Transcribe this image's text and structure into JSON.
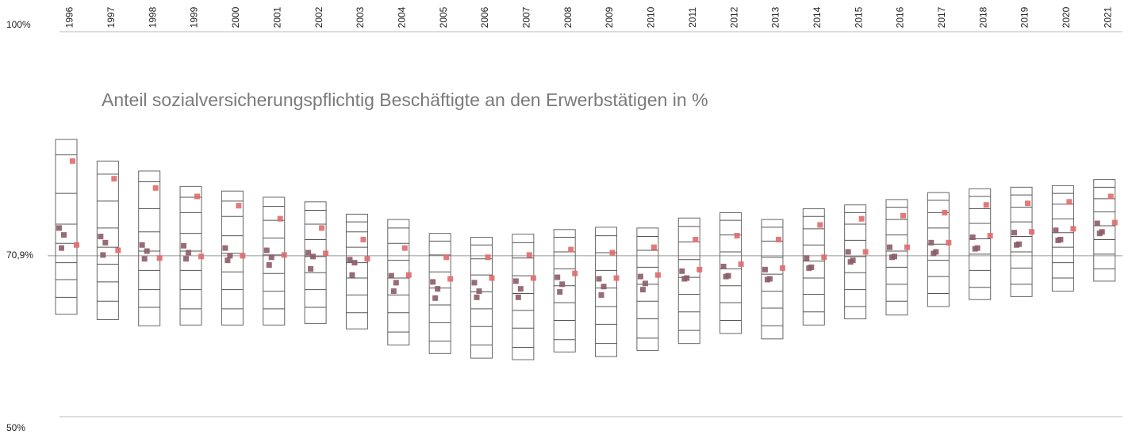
{
  "chart_data": {
    "type": "strip-box",
    "title": "Anteil sozialversicherungspflichtig Beschäftigte an den Erwerbstätigen in %",
    "categories": [
      "1996",
      "1997",
      "1998",
      "1999",
      "2000",
      "2001",
      "2002",
      "2003",
      "2004",
      "2005",
      "2006",
      "2007",
      "2008",
      "2009",
      "2010",
      "2011",
      "2012",
      "2013",
      "2014",
      "2015",
      "2016",
      "2017",
      "2018",
      "2019",
      "2020",
      "2021"
    ],
    "ylim": [
      50,
      100
    ],
    "yticks": [
      {
        "value": 100,
        "label": "100%"
      },
      {
        "value": 70.9,
        "label": "70,9%"
      },
      {
        "value": 50,
        "label": "50%"
      }
    ],
    "ranges": [
      [
        63.3,
        86.0
      ],
      [
        62.6,
        83.2
      ],
      [
        61.8,
        81.9
      ],
      [
        61.9,
        79.9
      ],
      [
        61.9,
        79.3
      ],
      [
        61.9,
        78.5
      ],
      [
        62.1,
        77.9
      ],
      [
        61.4,
        76.3
      ],
      [
        59.3,
        75.6
      ],
      [
        58.2,
        73.8
      ],
      [
        57.6,
        73.3
      ],
      [
        57.4,
        73.7
      ],
      [
        58.4,
        74.3
      ],
      [
        57.8,
        74.6
      ],
      [
        58.6,
        74.5
      ],
      [
        59.5,
        75.8
      ],
      [
        60.8,
        76.5
      ],
      [
        60.1,
        75.6
      ],
      [
        61.9,
        77.0
      ],
      [
        62.7,
        77.5
      ],
      [
        63.2,
        78.2
      ],
      [
        64.3,
        79.1
      ],
      [
        65.2,
        79.6
      ],
      [
        65.6,
        79.8
      ],
      [
        66.3,
        80.0
      ],
      [
        67.6,
        80.8
      ]
    ],
    "levels": [
      [
        65.5,
        67.8,
        70.0,
        72.5,
        75.0,
        79.0,
        84.0
      ],
      [
        65.0,
        67.5,
        69.8,
        72.0,
        74.5,
        78.0,
        81.5
      ],
      [
        64.2,
        66.5,
        69.0,
        71.5,
        74.0,
        77.0,
        80.5
      ],
      [
        64.0,
        66.5,
        69.0,
        71.5,
        73.8,
        76.5,
        78.5
      ],
      [
        64.0,
        66.5,
        68.8,
        71.2,
        73.5,
        76.0,
        78.0
      ],
      [
        64.0,
        66.3,
        68.6,
        71.0,
        73.2,
        75.5,
        77.3
      ],
      [
        64.2,
        66.5,
        68.7,
        70.8,
        73.0,
        75.0,
        76.8
      ],
      [
        63.5,
        65.8,
        68.0,
        70.0,
        72.0,
        74.0,
        75.3
      ],
      [
        61.0,
        63.5,
        65.8,
        68.0,
        70.3,
        72.5,
        74.5
      ],
      [
        59.8,
        62.2,
        64.5,
        66.7,
        68.8,
        71.0,
        72.8
      ],
      [
        59.3,
        61.7,
        64.0,
        66.2,
        68.4,
        70.5,
        72.3
      ],
      [
        59.0,
        61.5,
        63.8,
        66.0,
        68.3,
        70.6,
        72.6
      ],
      [
        60.0,
        62.5,
        64.8,
        67.0,
        69.2,
        71.4,
        73.3
      ],
      [
        59.5,
        62.0,
        64.3,
        66.7,
        69.0,
        71.3,
        73.5
      ],
      [
        60.2,
        62.7,
        65.0,
        67.2,
        69.4,
        71.6,
        73.4
      ],
      [
        61.2,
        63.6,
        65.9,
        68.1,
        70.4,
        72.7,
        74.7
      ],
      [
        62.5,
        64.8,
        67.0,
        69.2,
        71.4,
        73.6,
        75.5
      ],
      [
        61.8,
        64.1,
        66.3,
        68.5,
        70.7,
        72.8,
        74.6
      ],
      [
        63.6,
        65.9,
        68.0,
        70.2,
        72.3,
        74.4,
        76.0
      ],
      [
        64.3,
        66.5,
        68.7,
        70.8,
        72.9,
        75.0,
        76.5
      ],
      [
        65.0,
        67.2,
        69.4,
        71.5,
        73.6,
        75.6,
        77.2
      ],
      [
        66.0,
        68.2,
        70.3,
        72.4,
        74.5,
        76.5,
        78.1
      ],
      [
        66.8,
        69.0,
        71.1,
        73.1,
        75.1,
        77.0,
        78.6
      ],
      [
        67.2,
        69.3,
        71.4,
        73.4,
        75.3,
        77.2,
        78.8
      ],
      [
        68.0,
        70.0,
        72.0,
        73.9,
        75.7,
        77.6,
        79.0
      ],
      [
        69.2,
        71.1,
        73.0,
        74.8,
        76.6,
        78.3,
        79.8
      ]
    ],
    "series": [
      {
        "color": "#8c5c68",
        "values": [
          [
            74.5,
            73.6,
            71.9
          ],
          [
            73.4,
            72.6,
            71.0
          ],
          [
            72.3,
            71.5,
            70.5
          ],
          [
            72.2,
            71.3,
            70.5
          ],
          [
            71.9,
            70.9,
            70.3
          ],
          [
            71.6,
            70.7,
            69.7
          ],
          [
            71.3,
            70.8,
            69.2
          ],
          [
            70.4,
            70.0,
            68.4
          ],
          [
            68.3,
            67.4,
            66.3
          ],
          [
            67.5,
            66.6,
            65.4
          ],
          [
            67.4,
            66.3,
            65.5
          ],
          [
            67.6,
            66.6,
            65.5
          ],
          [
            68.1,
            67.2,
            66.2
          ],
          [
            67.9,
            66.9,
            65.8
          ],
          [
            68.2,
            67.3,
            66.5
          ],
          [
            68.9,
            68.0,
            67.9
          ],
          [
            69.5,
            68.3,
            68.2
          ],
          [
            69.1,
            67.9,
            67.8
          ],
          [
            70.6,
            69.4,
            69.3
          ],
          [
            71.4,
            70.3,
            70.1
          ],
          [
            72.0,
            70.8,
            70.7
          ],
          [
            72.6,
            71.4,
            71.2
          ],
          [
            73.3,
            71.9,
            71.8
          ],
          [
            73.9,
            72.4,
            72.3
          ],
          [
            74.2,
            73.0,
            72.9
          ],
          [
            75.1,
            74.0,
            73.8
          ]
        ]
      },
      {
        "color": "#e06b6b",
        "values": [
          [
            83.2,
            72.3
          ],
          [
            80.9,
            71.6
          ],
          [
            79.7,
            70.6
          ],
          [
            78.6,
            70.8
          ],
          [
            77.4,
            70.9
          ],
          [
            75.7,
            71.0
          ],
          [
            74.5,
            71.2
          ],
          [
            73.0,
            70.5
          ],
          [
            71.9,
            68.4
          ],
          [
            70.7,
            67.9
          ],
          [
            70.7,
            68.0
          ],
          [
            71.0,
            68.0
          ],
          [
            71.7,
            68.6
          ],
          [
            71.3,
            68.0
          ],
          [
            72.0,
            68.4
          ],
          [
            73.0,
            69.1
          ],
          [
            73.5,
            69.8
          ],
          [
            73.0,
            69.3
          ],
          [
            74.9,
            70.7
          ],
          [
            75.7,
            71.4
          ],
          [
            76.1,
            72.0
          ],
          [
            76.5,
            72.6
          ],
          [
            77.5,
            73.5
          ],
          [
            77.7,
            74.0
          ],
          [
            77.9,
            74.4
          ],
          [
            78.6,
            75.2
          ]
        ]
      }
    ]
  }
}
